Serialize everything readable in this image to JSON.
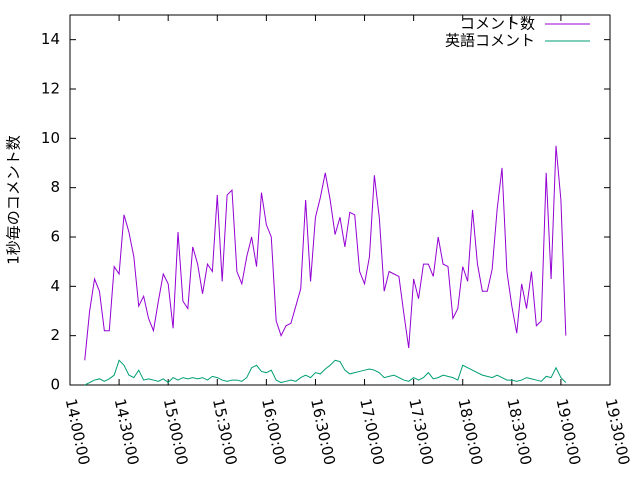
{
  "chart_data": {
    "type": "line",
    "y_label": "1秒毎のコメント数",
    "x": [
      "14:09:00",
      "14:12:00",
      "14:15:00",
      "14:18:00",
      "14:21:00",
      "14:24:00",
      "14:27:00",
      "14:30:00",
      "14:33:00",
      "14:36:00",
      "14:39:00",
      "14:42:00",
      "14:45:00",
      "14:48:00",
      "14:51:00",
      "14:54:00",
      "14:57:00",
      "15:00:00",
      "15:03:00",
      "15:06:00",
      "15:09:00",
      "15:12:00",
      "15:15:00",
      "15:18:00",
      "15:21:00",
      "15:24:00",
      "15:27:00",
      "15:30:00",
      "15:33:00",
      "15:36:00",
      "15:39:00",
      "15:42:00",
      "15:45:00",
      "15:48:00",
      "15:51:00",
      "15:54:00",
      "15:57:00",
      "16:00:00",
      "16:03:00",
      "16:06:00",
      "16:09:00",
      "16:12:00",
      "16:15:00",
      "16:18:00",
      "16:21:00",
      "16:24:00",
      "16:27:00",
      "16:30:00",
      "16:33:00",
      "16:36:00",
      "16:39:00",
      "16:42:00",
      "16:45:00",
      "16:48:00",
      "16:51:00",
      "16:54:00",
      "16:57:00",
      "17:00:00",
      "17:03:00",
      "17:06:00",
      "17:09:00",
      "17:12:00",
      "17:15:00",
      "17:18:00",
      "17:21:00",
      "17:24:00",
      "17:27:00",
      "17:30:00",
      "17:33:00",
      "17:36:00",
      "17:39:00",
      "17:42:00",
      "17:45:00",
      "17:48:00",
      "17:51:00",
      "17:54:00",
      "17:57:00",
      "18:00:00",
      "18:03:00",
      "18:06:00",
      "18:09:00",
      "18:12:00",
      "18:15:00",
      "18:18:00",
      "18:21:00",
      "18:24:00",
      "18:27:00",
      "18:30:00",
      "18:33:00",
      "18:36:00",
      "18:39:00",
      "18:42:00",
      "18:45:00",
      "18:48:00",
      "18:51:00",
      "18:54:00",
      "18:57:00",
      "19:00:00",
      "19:03:00"
    ],
    "series": [
      {
        "name": "コメント数",
        "color": "#9400d3",
        "values": [
          1.0,
          3.0,
          4.3,
          3.8,
          2.2,
          2.2,
          4.8,
          4.5,
          6.9,
          6.2,
          5.2,
          3.2,
          3.6,
          2.7,
          2.2,
          3.4,
          4.5,
          4.1,
          2.3,
          6.2,
          3.4,
          3.1,
          5.6,
          4.9,
          3.7,
          4.9,
          4.6,
          7.7,
          4.2,
          7.7,
          7.9,
          4.6,
          4.1,
          5.2,
          6.0,
          4.8,
          7.8,
          6.5,
          6.0,
          2.6,
          2.0,
          2.4,
          2.5,
          3.2,
          3.9,
          7.5,
          4.2,
          6.8,
          7.6,
          8.6,
          7.5,
          6.1,
          6.8,
          5.6,
          7.0,
          6.9,
          4.6,
          4.1,
          5.2,
          8.5,
          6.8,
          3.8,
          4.6,
          4.5,
          4.4,
          2.9,
          1.5,
          4.3,
          3.5,
          4.9,
          4.9,
          4.4,
          6.0,
          4.9,
          4.8,
          2.7,
          3.1,
          4.8,
          4.2,
          7.1,
          4.9,
          3.8,
          3.8,
          4.7,
          7.1,
          8.8,
          4.6,
          3.2,
          2.1,
          4.1,
          3.1,
          4.6,
          2.4,
          2.6,
          8.6,
          4.3,
          9.7,
          7.5,
          2.0
        ]
      },
      {
        "name": "英語コメント",
        "color": "#009e73",
        "values": [
          0.0,
          0.1,
          0.2,
          0.25,
          0.15,
          0.25,
          0.4,
          1.0,
          0.8,
          0.4,
          0.3,
          0.6,
          0.2,
          0.25,
          0.2,
          0.15,
          0.25,
          0.1,
          0.3,
          0.2,
          0.3,
          0.25,
          0.3,
          0.25,
          0.3,
          0.2,
          0.35,
          0.3,
          0.2,
          0.15,
          0.2,
          0.2,
          0.15,
          0.3,
          0.7,
          0.8,
          0.55,
          0.5,
          0.6,
          0.2,
          0.1,
          0.15,
          0.2,
          0.15,
          0.3,
          0.4,
          0.3,
          0.5,
          0.45,
          0.65,
          0.8,
          1.0,
          0.95,
          0.6,
          0.45,
          0.5,
          0.55,
          0.6,
          0.65,
          0.6,
          0.5,
          0.3,
          0.35,
          0.4,
          0.3,
          0.2,
          0.15,
          0.3,
          0.2,
          0.3,
          0.5,
          0.25,
          0.3,
          0.4,
          0.35,
          0.3,
          0.2,
          0.8,
          0.7,
          0.6,
          0.5,
          0.4,
          0.35,
          0.3,
          0.4,
          0.3,
          0.2,
          0.2,
          0.15,
          0.2,
          0.3,
          0.25,
          0.2,
          0.15,
          0.35,
          0.3,
          0.7,
          0.3,
          0.1
        ]
      }
    ],
    "xlim": [
      "14:00:00",
      "19:30:00"
    ],
    "xticks": [
      "14:00:00",
      "14:30:00",
      "15:00:00",
      "15:30:00",
      "16:00:00",
      "16:30:00",
      "17:00:00",
      "17:30:00",
      "18:00:00",
      "18:30:00",
      "19:00:00",
      "19:30:00"
    ],
    "ylim": [
      0,
      15
    ],
    "yticks": [
      0,
      2,
      4,
      6,
      8,
      10,
      12,
      14
    ],
    "legend": "top-right"
  }
}
